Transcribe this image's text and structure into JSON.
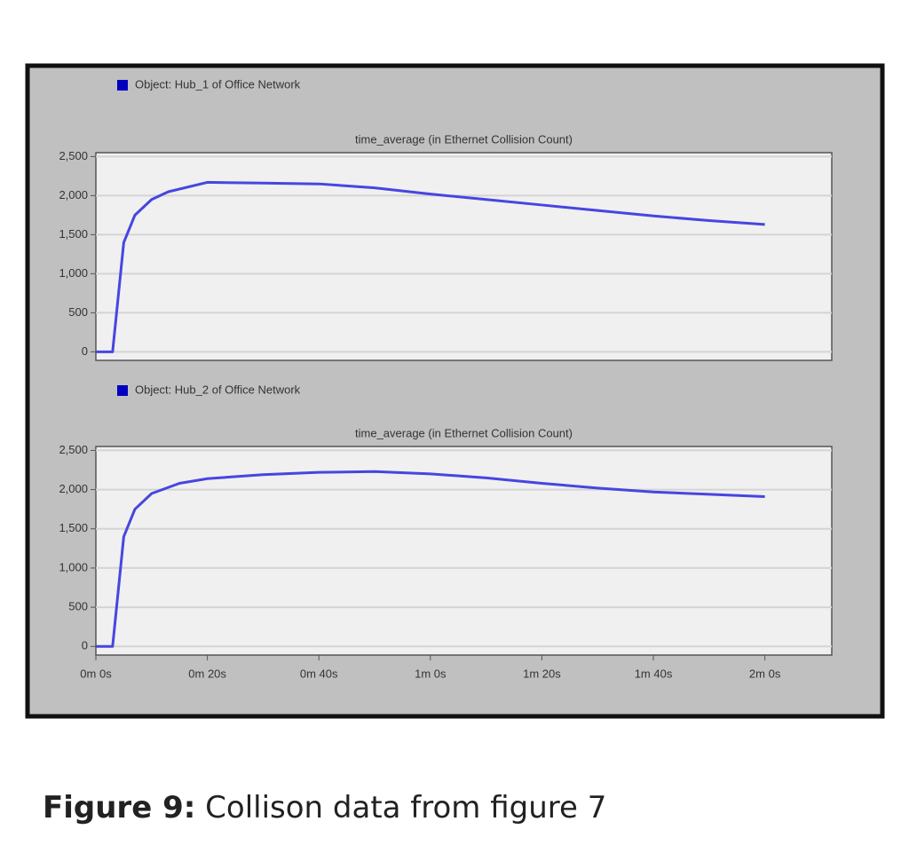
{
  "chart_data": [
    {
      "type": "line",
      "title": "time_average (in Ethernet Collision Count)",
      "x": [
        0,
        3,
        4,
        5,
        7,
        10,
        13,
        20,
        30,
        40,
        50,
        60,
        70,
        80,
        90,
        100,
        110,
        120
      ],
      "series": [
        {
          "name": "Object: Hub_1 of Office Network",
          "color": "#4646e0",
          "values": [
            0,
            0,
            700,
            1400,
            1750,
            1950,
            2050,
            2170,
            2160,
            2150,
            2100,
            2020,
            1950,
            1880,
            1810,
            1740,
            1680,
            1630
          ]
        }
      ],
      "xlim": [
        0,
        132
      ],
      "ylim": [
        -110,
        2550
      ],
      "yticks": [
        0,
        500,
        {
          "value": 1000,
          "label": "1,000"
        },
        {
          "value": 1500,
          "label": "1,500"
        },
        {
          "value": 2000,
          "label": "2,000"
        },
        {
          "value": 2500,
          "label": "2,500"
        }
      ],
      "grid": true
    },
    {
      "type": "line",
      "title": "time_average (in Ethernet Collision Count)",
      "x": [
        0,
        3,
        4,
        5,
        7,
        10,
        15,
        20,
        30,
        40,
        50,
        60,
        70,
        80,
        90,
        100,
        110,
        120
      ],
      "series": [
        {
          "name": "Object: Hub_2 of Office Network",
          "color": "#4646e0",
          "values": [
            0,
            0,
            700,
            1400,
            1750,
            1950,
            2080,
            2140,
            2190,
            2220,
            2230,
            2200,
            2150,
            2080,
            2020,
            1970,
            1940,
            1910
          ]
        }
      ],
      "xlim": [
        0,
        132
      ],
      "ylim": [
        -110,
        2550
      ],
      "xticks": [
        {
          "value": 0,
          "label": "0m 0s"
        },
        {
          "value": 20,
          "label": "0m 20s"
        },
        {
          "value": 40,
          "label": "0m 40s"
        },
        {
          "value": 60,
          "label": "1m 0s"
        },
        {
          "value": 80,
          "label": "1m 20s"
        },
        {
          "value": 100,
          "label": "1m 40s"
        },
        {
          "value": 120,
          "label": "2m 0s"
        }
      ],
      "yticks": [
        0,
        500,
        {
          "value": 1000,
          "label": "1,000"
        },
        {
          "value": 1500,
          "label": "1,500"
        },
        {
          "value": 2000,
          "label": "2,000"
        },
        {
          "value": 2500,
          "label": "2,500"
        }
      ],
      "grid": true
    }
  ],
  "caption": {
    "label": "Figure 9:",
    "text": "Collison data from figure 7"
  }
}
